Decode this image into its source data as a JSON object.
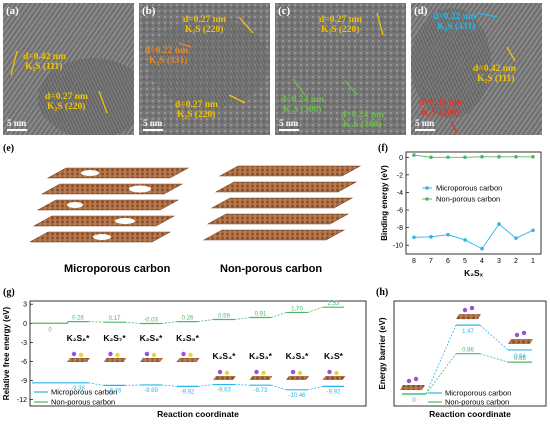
{
  "tem": [
    {
      "label": "(a)",
      "scale": "5 nm",
      "ann": [
        {
          "d": "d=0.42 nm",
          "hkl": "K₂S (111)",
          "color": "#f2c500"
        },
        {
          "d": "d=0.27 nm",
          "hkl": "K₂S (220)",
          "color": "#f2c500"
        }
      ]
    },
    {
      "label": "(b)",
      "scale": "5 nm",
      "ann": [
        {
          "d": "d=0.27 nm",
          "hkl": "K₂S (220)",
          "color": "#f2c500"
        },
        {
          "d": "d=0.22 nm",
          "hkl": "K₂S (331)",
          "color": "#e98a2c"
        },
        {
          "d": "d=0.27 nm",
          "hkl": "K₂S (220)",
          "color": "#f2c500"
        }
      ]
    },
    {
      "label": "(c)",
      "scale": "5 nm",
      "ann": [
        {
          "d": "d=0.27 nm",
          "hkl": "K₂S (220)",
          "color": "#f2c500"
        },
        {
          "d": "d=0.24 nm",
          "hkl": "K₂S (300)",
          "color": "#6cc04a"
        },
        {
          "d": "d=0.24 nm",
          "hkl": "K₂S (300)",
          "color": "#6cc04a"
        }
      ]
    },
    {
      "label": "(d)",
      "scale": "5 nm",
      "ann": [
        {
          "d": "d=0.22 nm",
          "hkl": "K₂S (331)",
          "color": "#29b6ea"
        },
        {
          "d": "d=0.42 nm",
          "hkl": "K₂S (111)",
          "color": "#f2c500"
        },
        {
          "d": "d=0.33 nm",
          "hkl": "K₂S (200)",
          "color": "#e4322b"
        }
      ]
    }
  ],
  "panel_e": {
    "label": "(e)",
    "left_caption": "Microporous carbon",
    "right_caption": "Non-porous carbon"
  },
  "chart_data": [
    {
      "panel": "(f)",
      "type": "line",
      "ylabel": "Binding energy (eV)",
      "xlabel": "K₂Sₓ",
      "x": [
        "8",
        "7",
        "6",
        "5",
        "4",
        "3",
        "2",
        "1"
      ],
      "yticks": [
        0,
        -2,
        -4,
        -6,
        -8,
        -10
      ],
      "ylim": [
        -11,
        0.6
      ],
      "series": [
        {
          "name": "Microporous carbon",
          "color": "#29b6ea",
          "values": [
            -9.1,
            -9.05,
            -8.8,
            -9.4,
            -10.4,
            -7.6,
            -9.2,
            -8.3
          ]
        },
        {
          "name": "Non-porous carbon",
          "color": "#4cb865",
          "values": [
            0.25,
            0.0,
            0.0,
            0.0,
            0.05,
            0.05,
            0.05,
            0.05
          ]
        }
      ],
      "legend": "center-right"
    },
    {
      "panel": "(g)",
      "type": "line",
      "ylabel": "Relative free energy (eV)",
      "xlabel": "Reaction coordinate",
      "yticks": [
        3,
        0,
        -3,
        -6,
        -9,
        -12
      ],
      "ylim": [
        -13,
        3.5
      ],
      "species": [
        "K₂S₈*",
        "K₂S₇*",
        "K₂S₆*",
        "K₂S₅*",
        "K₂S₄*",
        "K₂S₃*",
        "K₂S₂*",
        "K₂S*"
      ],
      "series": [
        {
          "name": "Microporous carbon",
          "color": "#29b6ea",
          "start": -9.36,
          "values": [
            -9.36,
            -9.76,
            -9.69,
            -9.92,
            -9.63,
            -9.73,
            -10.46,
            -9.92
          ],
          "labels": [
            "-9.36",
            "-9.76",
            "-9.69",
            "-9.92",
            "-9.63",
            "-9.73",
            "-10.46",
            "-9.92"
          ]
        },
        {
          "name": "Non-porous carbon",
          "color": "#4cb865",
          "start": 0,
          "values": [
            0.26,
            0.17,
            -0.03,
            0.26,
            0.59,
            0.91,
            1.7,
            2.53
          ],
          "labels": [
            "0.26",
            "0.17",
            "-0.03",
            "0.26",
            "0.59",
            "0.91",
            "1.70",
            "2.53"
          ]
        }
      ],
      "start_label": "0",
      "legend": "bottom-left"
    },
    {
      "panel": "(h)",
      "type": "line",
      "ylabel": "Energy barrier (eV)",
      "xlabel": "Reaction coordinate",
      "series": [
        {
          "name": "Microporous carbon",
          "color": "#29b6ea",
          "values": [
            0,
            1.47,
            0.94
          ],
          "labels": [
            "0",
            "1.47",
            "0.94"
          ]
        },
        {
          "name": "Non-porous carbon",
          "color": "#4cb865",
          "values": [
            0,
            0.86,
            0.68
          ],
          "labels": [
            "",
            "0.86",
            "0.68"
          ]
        }
      ],
      "legend": "bottom"
    }
  ]
}
